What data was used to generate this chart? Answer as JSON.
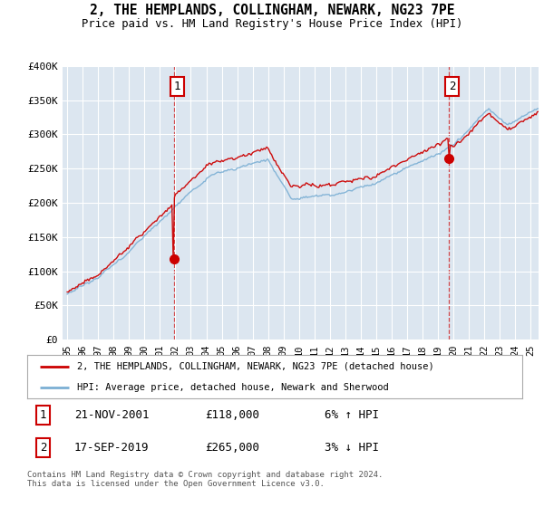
{
  "title": "2, THE HEMPLANDS, COLLINGHAM, NEWARK, NG23 7PE",
  "subtitle": "Price paid vs. HM Land Registry's House Price Index (HPI)",
  "legend_line1": "2, THE HEMPLANDS, COLLINGHAM, NEWARK, NG23 7PE (detached house)",
  "legend_line2": "HPI: Average price, detached house, Newark and Sherwood",
  "transaction1_date": "21-NOV-2001",
  "transaction1_price": "£118,000",
  "transaction1_hpi": "6% ↑ HPI",
  "transaction2_date": "17-SEP-2019",
  "transaction2_price": "£265,000",
  "transaction2_hpi": "3% ↓ HPI",
  "footer": "Contains HM Land Registry data © Crown copyright and database right 2024.\nThis data is licensed under the Open Government Licence v3.0.",
  "ylim": [
    0,
    400000
  ],
  "yticks": [
    0,
    50000,
    100000,
    150000,
    200000,
    250000,
    300000,
    350000,
    400000
  ],
  "ytick_labels": [
    "£0",
    "£50K",
    "£100K",
    "£150K",
    "£200K",
    "£250K",
    "£300K",
    "£350K",
    "£400K"
  ],
  "xlim_start": 1994.7,
  "xlim_end": 2025.5,
  "xticks": [
    1995,
    1996,
    1997,
    1998,
    1999,
    2000,
    2001,
    2002,
    2003,
    2004,
    2005,
    2006,
    2007,
    2008,
    2009,
    2010,
    2011,
    2012,
    2013,
    2014,
    2015,
    2016,
    2017,
    2018,
    2019,
    2020,
    2021,
    2022,
    2023,
    2024,
    2025
  ],
  "xtick_labels": [
    "95",
    "96",
    "97",
    "98",
    "99",
    "00",
    "01",
    "02",
    "03",
    "04",
    "05",
    "06",
    "07",
    "08",
    "09",
    "10",
    "11",
    "12",
    "13",
    "14",
    "15",
    "16",
    "17",
    "18",
    "19",
    "20",
    "21",
    "22",
    "23",
    "24",
    "25"
  ],
  "transaction1_x": 2001.9,
  "transaction2_x": 2019.72,
  "transaction1_y": 118000,
  "transaction2_y": 265000,
  "line_color_property": "#cc0000",
  "line_color_hpi": "#7bafd4",
  "plot_bg_color": "#dce6f0",
  "fig_bg_color": "#ffffff",
  "grid_color": "#ffffff",
  "marker_box_color": "#cc0000"
}
